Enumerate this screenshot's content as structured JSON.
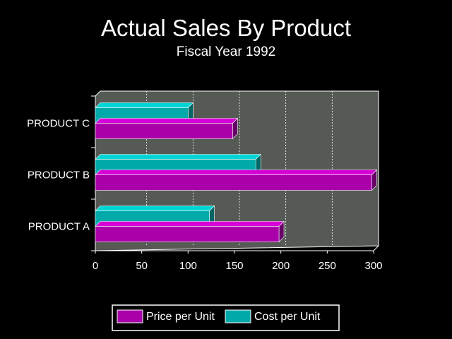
{
  "chart_data": {
    "type": "bar",
    "orientation": "horizontal",
    "title": "Actual Sales By Product",
    "subtitle": "Fiscal Year 1992",
    "categories": [
      "PRODUCT A",
      "PRODUCT B",
      "PRODUCT C"
    ],
    "series": [
      {
        "name": "Price per Unit",
        "values": [
          198,
          298,
          148
        ],
        "color": "#aa00aa"
      },
      {
        "name": "Cost per Unit",
        "values": [
          123,
          173,
          100
        ],
        "color": "#00aaaa"
      }
    ],
    "xticks": [
      "0",
      "50",
      "100",
      "150",
      "200",
      "250",
      "300"
    ],
    "xlim": [
      0,
      300
    ],
    "grid": true,
    "legend_position": "bottom",
    "colors": {
      "background": "#000000",
      "plot_area": "#555a55",
      "gridline": "#ffffff",
      "text": "#ffffff"
    }
  }
}
